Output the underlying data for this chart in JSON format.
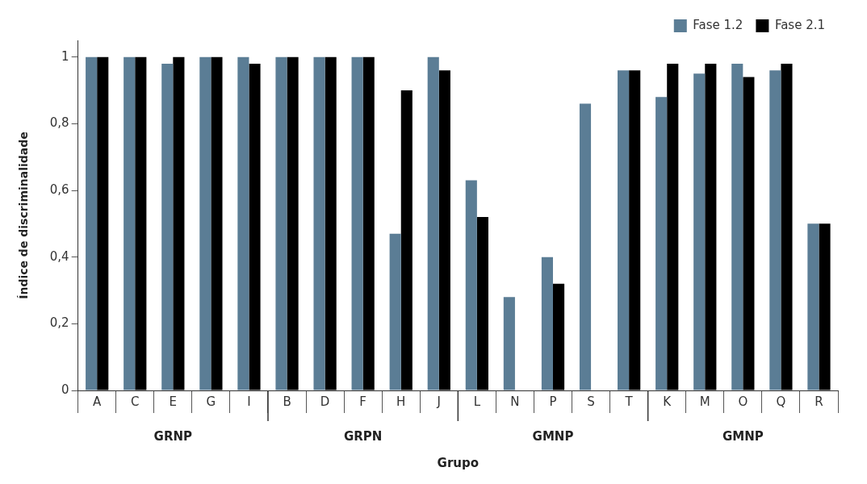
{
  "chart_data": {
    "type": "bar",
    "xlabel": "Grupo",
    "ylabel": "Índice de discriminalidade",
    "categories": [
      "A",
      "C",
      "E",
      "G",
      "I",
      "B",
      "D",
      "F",
      "H",
      "J",
      "L",
      "N",
      "P",
      "S",
      "T",
      "K",
      "M",
      "O",
      "Q",
      "R"
    ],
    "series": [
      {
        "name": "Fase 1.2",
        "color": "#5b7d95",
        "values": [
          1,
          1,
          0.98,
          1,
          1,
          1,
          1,
          1,
          0.47,
          1,
          0.63,
          0.28,
          0.4,
          0.86,
          0.96,
          0.88,
          0.95,
          0.98,
          0.96,
          0.5
        ]
      },
      {
        "name": "Fase 2.1",
        "color": "#000000",
        "values": [
          1,
          1,
          1,
          1,
          0.98,
          1,
          1,
          1,
          0.9,
          0.96,
          0.52,
          null,
          0.32,
          null,
          0.96,
          0.98,
          0.98,
          0.94,
          0.98,
          0.5
        ]
      }
    ],
    "annotations": [
      "GRNP",
      "GRPN",
      "GMNP",
      "GMNP"
    ],
    "ylim": [
      0,
      1.05
    ],
    "yticks": [
      0,
      {
        "value": 0.2,
        "label": "0,2"
      },
      {
        "value": 0.4,
        "label": "0,4"
      },
      {
        "value": 0.6,
        "label": "0,6"
      },
      {
        "value": 0.8,
        "label": "0,8"
      },
      1
    ],
    "grid": false,
    "legend": "top right"
  }
}
